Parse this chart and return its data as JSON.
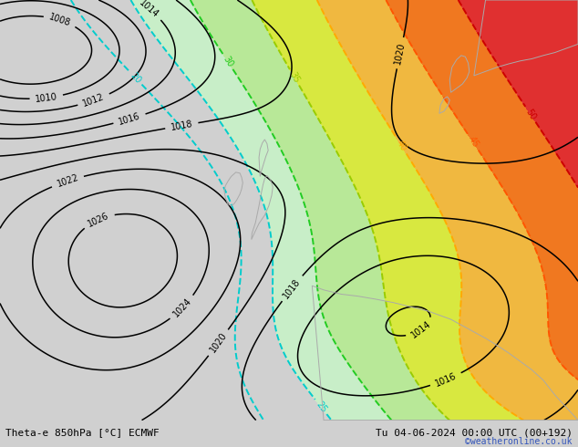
{
  "title_left": "Theta-e 850hPa [°C] ECMWF",
  "title_right": "Tu 04-06-2024 00:00 UTC (00+192)",
  "copyright": "©weatheronline.co.uk",
  "bg_color": "#d0d0d0",
  "fig_width": 6.34,
  "fig_height": 4.9,
  "dpi": 100,
  "pressure_contour_color": "#000000",
  "theta_line_colors": [
    "#00cccc",
    "#00cccc",
    "#22cc22",
    "#99cc00",
    "#ffaa00",
    "#ff5500",
    "#cc0000"
  ],
  "theta_line_levels": [
    20,
    25,
    30,
    35,
    40,
    45,
    50
  ],
  "fill_levels": [
    25,
    30,
    35,
    40,
    45,
    50,
    100
  ],
  "fill_colors": [
    "#c8eec8",
    "#b8e898",
    "#d8e840",
    "#f0b840",
    "#f07820",
    "#e03030"
  ],
  "pressure_levels": [
    1008,
    1010,
    1012,
    1014,
    1016,
    1018,
    1020,
    1022,
    1024,
    1026
  ]
}
